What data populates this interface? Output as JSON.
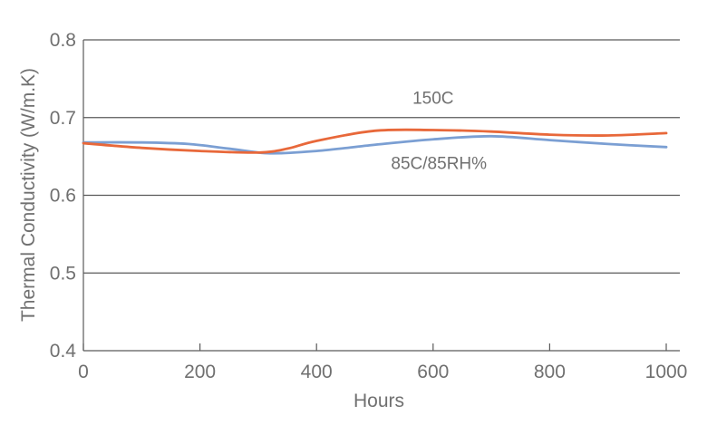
{
  "chart_data": {
    "type": "line",
    "xlabel": "Hours",
    "ylabel": "Thermal Conductivity (W/m.K)",
    "xlim": [
      0,
      1000
    ],
    "ylim": [
      0.4,
      0.8
    ],
    "xticks": [
      0,
      200,
      400,
      600,
      800,
      1000
    ],
    "xtick_labels": [
      "0",
      "200",
      "400",
      "600",
      "800",
      "1000"
    ],
    "yticks": [
      0.4,
      0.5,
      0.6,
      0.7,
      0.8
    ],
    "ytick_labels": [
      "0.4",
      "0.5",
      "0.6",
      "0.7",
      "0.8"
    ],
    "grid": "horizontal",
    "series": [
      {
        "color": "#E8683A",
        "x": [
          0,
          100,
          200,
          300,
          350,
          400,
          500,
          600,
          700,
          800,
          900,
          1000
        ],
        "y": [
          0.667,
          0.661,
          0.657,
          0.655,
          0.66,
          0.67,
          0.683,
          0.684,
          0.682,
          0.678,
          0.677,
          0.68
        ]
      },
      {
        "color": "#7B9FD3",
        "x": [
          0,
          100,
          180,
          250,
          320,
          400,
          500,
          600,
          700,
          800,
          900,
          1000
        ],
        "y": [
          0.668,
          0.668,
          0.666,
          0.66,
          0.654,
          0.657,
          0.665,
          0.672,
          0.676,
          0.671,
          0.666,
          0.662
        ]
      }
    ],
    "annotations": [
      {
        "text": "150C",
        "x": 600,
        "y": 0.718
      },
      {
        "text": "85C/85RH%",
        "x": 610,
        "y": 0.634
      }
    ]
  }
}
